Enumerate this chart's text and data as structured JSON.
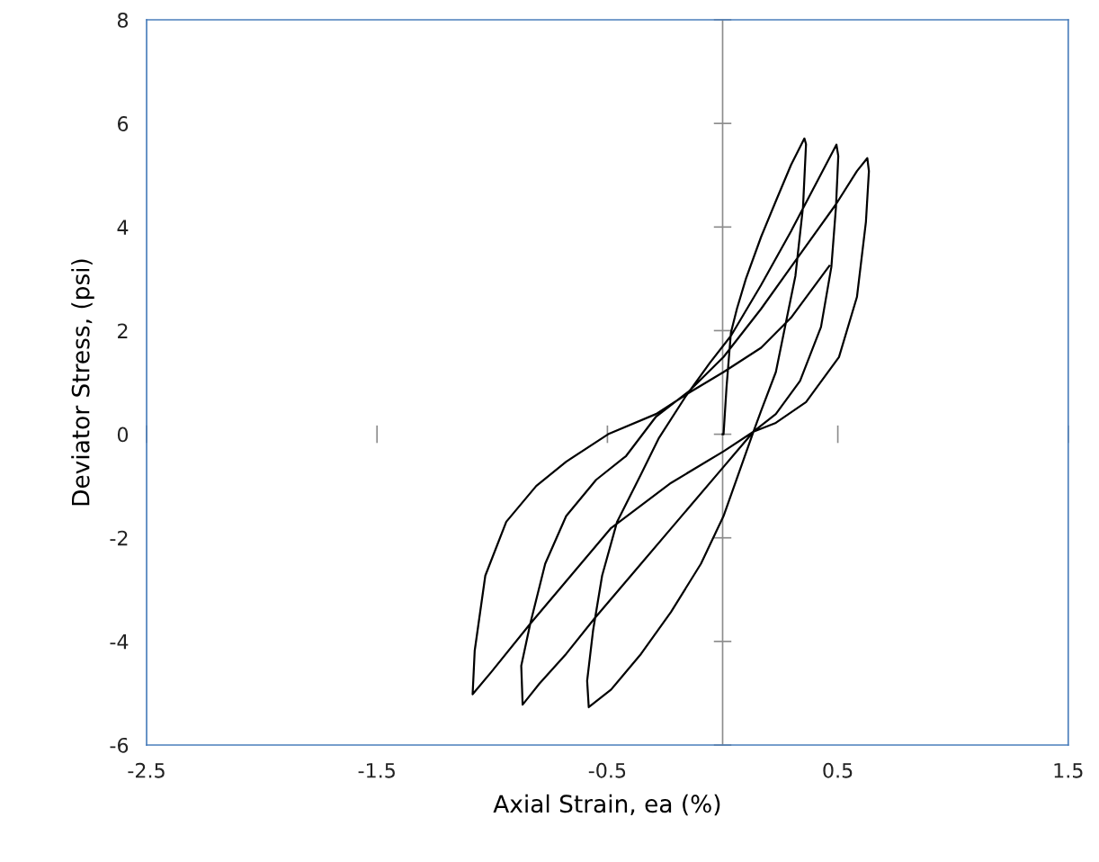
{
  "chart_data": {
    "type": "line",
    "xlabel": "Axial Strain, ea (%)",
    "ylabel": "Deviator Stress, (psi)",
    "xlim": [
      -2.5,
      1.5
    ],
    "ylim": [
      -6,
      8
    ],
    "xticks": [
      -2.5,
      -1.5,
      -0.5,
      0.5,
      1.5
    ],
    "yticks": [
      -6,
      -4,
      -2,
      0,
      2,
      4,
      6,
      8
    ],
    "grid": false,
    "marker": "none",
    "line_style": "solid",
    "series": [
      {
        "color": "#000000",
        "x": [
          0.0,
          0.004,
          0.017,
          0.036,
          0.062,
          0.101,
          0.167,
          0.231,
          0.297,
          0.355,
          0.362,
          0.349,
          0.316,
          0.284,
          0.231,
          0.167,
          0.134,
          0.004,
          -0.094,
          -0.224,
          -0.354,
          -0.484,
          -0.581,
          -0.588,
          -0.562,
          -0.523,
          -0.458,
          -0.354,
          -0.276,
          -0.159,
          -0.055,
          0.036,
          0.167,
          0.297,
          0.427,
          0.494,
          0.502,
          0.492,
          0.472,
          0.427,
          0.336,
          0.231,
          0.134,
          0.004,
          -0.224,
          -0.354,
          -0.555,
          -0.679,
          -0.796,
          -0.868,
          -0.874,
          -0.835,
          -0.77,
          -0.679,
          -0.549,
          -0.419,
          -0.289,
          -0.146,
          0.004,
          0.167,
          0.297,
          0.492,
          0.583,
          0.628,
          0.635,
          0.622,
          0.583,
          0.505,
          0.362,
          0.231,
          0.134,
          0.004,
          -0.224,
          -0.484,
          -0.835,
          -1.004,
          -1.085,
          -1.076,
          -1.03,
          -0.939,
          -0.809,
          -0.679,
          -0.497,
          -0.289,
          -0.146,
          0.004,
          0.167,
          0.297,
          0.463
        ],
        "values": [
          0.0,
          0.0,
          0.91,
          1.96,
          2.42,
          3.0,
          3.81,
          4.5,
          5.2,
          5.71,
          5.6,
          4.39,
          3.06,
          2.36,
          1.2,
          0.45,
          0.05,
          -1.58,
          -2.5,
          -3.43,
          -4.24,
          -4.93,
          -5.27,
          -4.76,
          -3.78,
          -2.73,
          -1.69,
          -0.77,
          -0.07,
          0.74,
          1.38,
          1.9,
          2.88,
          3.92,
          5.02,
          5.59,
          5.37,
          4.39,
          3.23,
          2.07,
          1.03,
          0.39,
          0.05,
          -0.63,
          -1.82,
          -2.5,
          -3.55,
          -4.24,
          -4.82,
          -5.22,
          -4.47,
          -3.66,
          -2.5,
          -1.58,
          -0.88,
          -0.42,
          0.34,
          0.83,
          1.49,
          2.42,
          3.23,
          4.44,
          5.08,
          5.33,
          5.08,
          4.1,
          2.65,
          1.49,
          0.62,
          0.22,
          0.05,
          -0.33,
          -0.94,
          -1.81,
          -3.66,
          -4.59,
          -5.02,
          -4.18,
          -2.73,
          -1.69,
          -1.0,
          -0.53,
          0.0,
          0.39,
          0.8,
          1.2,
          1.67,
          2.25,
          3.25
        ]
      }
    ]
  }
}
